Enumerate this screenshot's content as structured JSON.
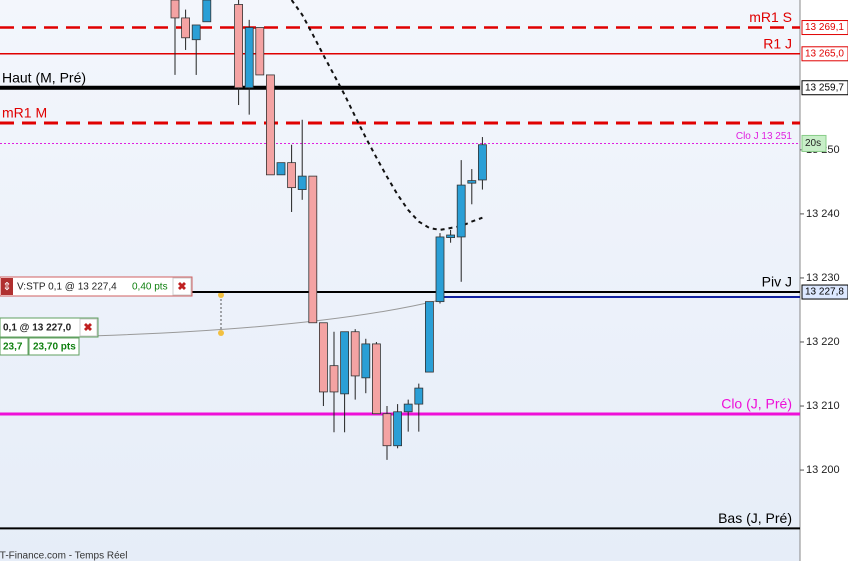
{
  "chart_data": {
    "type": "candlestick",
    "ylim": [
      13185.8,
      13273.4
    ],
    "yticks": [
      {
        "value": 13200,
        "label": "13 200"
      },
      {
        "value": 13210,
        "label": "13 210"
      },
      {
        "value": 13220,
        "label": "13 220"
      },
      {
        "value": 13230,
        "label": "13 230"
      },
      {
        "value": 13240,
        "label": "13 240"
      },
      {
        "value": 13250,
        "label": "13 250"
      }
    ],
    "open": [
      13273.4,
      13270.6,
      13267.2,
      13270.0,
      null,
      null,
      13272.7,
      13259.7,
      13269.1,
      13261.7,
      13246.1,
      13248.0,
      13243.8,
      13245.9,
      13223.0,
      13216.3,
      13211.9,
      13221.6,
      13214.4,
      13219.7,
      13208.8,
      13203.8,
      13209.1,
      13210.3,
      13215.3,
      13226.3,
      13236.3,
      13236.4,
      13244.8,
      13245.3
    ],
    "high": [
      13273.4,
      13271.9,
      13269.5,
      13273.4,
      null,
      null,
      13273.4,
      13270.3,
      13269.1,
      13261.7,
      13248.0,
      13250.8,
      13254.7,
      13245.9,
      13223.0,
      13221.6,
      13221.6,
      13222.0,
      13220.5,
      13220.0,
      13210.0,
      13210.3,
      13211.0,
      13213.5,
      13226.3,
      13237.0,
      13237.5,
      13248.4,
      13247.0,
      13252.0
    ],
    "low": [
      13261.7,
      13265.6,
      13261.7,
      13270.0,
      null,
      null,
      13257.0,
      13255.5,
      13261.7,
      13246.1,
      13246.1,
      13240.3,
      13242.2,
      13223.0,
      13210.0,
      13205.9,
      13205.9,
      13211.0,
      13212.0,
      13208.8,
      13201.6,
      13203.4,
      13206.0,
      13206.0,
      13215.3,
      13226.0,
      13235.5,
      13229.4,
      13241.5,
      13243.8
    ],
    "close": [
      13270.6,
      13267.5,
      13269.5,
      13273.4,
      null,
      null,
      13259.7,
      13269.1,
      13261.7,
      13246.1,
      13248.0,
      13244.1,
      13245.9,
      13223.0,
      13212.2,
      13212.2,
      13221.6,
      13214.7,
      13219.7,
      13208.8,
      13203.8,
      13209.1,
      13210.3,
      13212.8,
      13226.3,
      13236.4,
      13236.7,
      13244.5,
      13245.2,
      13250.8
    ],
    "moving_average": [
      null,
      null,
      null,
      null,
      null,
      null,
      null,
      null,
      null,
      null,
      null,
      13273.4,
      13271.1,
      13268.0,
      13264.8,
      13261.7,
      13258.6,
      13255.2,
      13251.9,
      13248.8,
      13245.8,
      13243.0,
      13240.6,
      13238.8,
      13237.8,
      13237.5,
      13237.8,
      13238.1,
      13238.8,
      13239.4
    ],
    "up_color": "#2a9fd6",
    "down_color": "#f4a3a3",
    "levels": [
      {
        "name": "mR1 S",
        "value": 13269.1,
        "value_label": "13 269,1",
        "color": "#e00000",
        "style": "dashed",
        "width": 2.5,
        "side": "right"
      },
      {
        "name": "R1 J",
        "value": 13265.0,
        "value_label": "13 265,0",
        "color": "#e00000",
        "style": "solid",
        "width": 1.5,
        "side": "right"
      },
      {
        "name": "Haut (M, Pré)",
        "value": 13259.7,
        "value_label": "13 259,7",
        "color": "#000000",
        "style": "solid",
        "width": 4,
        "side": "left"
      },
      {
        "name": "mR1 M",
        "value": 13254.2,
        "color": "#e00000",
        "style": "dashed",
        "width": 3,
        "side": "left"
      },
      {
        "name": "Clo J 13 251",
        "value": 13251,
        "color": "#e020e0",
        "style": "dotted",
        "width": 1,
        "side": "right"
      },
      {
        "name": "Piv J",
        "value": 13227.8,
        "value_label": "13 227,8",
        "color": "#000000",
        "style": "solid",
        "width": 2,
        "side": "right"
      },
      {
        "name": "Clo (J, Pré)",
        "value": 13208.75,
        "color": "#ee10d8",
        "style": "solid",
        "width": 3,
        "side": "right"
      },
      {
        "name": "Bas (J, Pré)",
        "value": 13190.9,
        "color": "#000000",
        "style": "solid",
        "width": 2,
        "side": "right"
      }
    ],
    "timer": "20s"
  },
  "orders": [
    {
      "text": "V:STP 0,1 @ 13 227,4",
      "pts": "0,40 pts"
    },
    {
      "text": "0,1 @ 13 227,0",
      "qty": "23,7",
      "pts": "23,70 pts"
    }
  ],
  "footer": "IT-Finance.com - Temps Réel"
}
